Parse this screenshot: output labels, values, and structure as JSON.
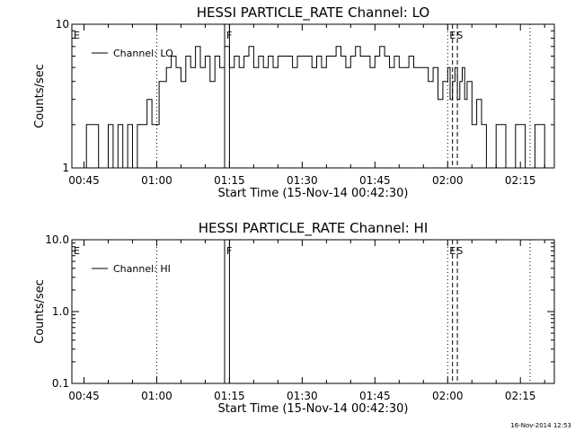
{
  "chart_data": [
    {
      "type": "line",
      "title": "HESSI PARTICLE_RATE Channel: LO",
      "xlabel": "Start Time (15-Nov-14 00:42:30)",
      "ylabel": "Counts/sec",
      "yscale": "log",
      "xlim": [
        "00:42:30",
        "02:22:00"
      ],
      "ylim": [
        1,
        10
      ],
      "x_ticks": [
        "00:45",
        "01:00",
        "01:15",
        "01:30",
        "01:45",
        "02:00",
        "02:15"
      ],
      "y_ticks": [
        "1",
        "10"
      ],
      "grid": false,
      "legend": {
        "placement": "top-left",
        "entries": [
          "Channel: LO"
        ]
      },
      "series": [
        {
          "name": "Channel: LO",
          "x": [
            "00:42:30",
            "00:45:30",
            "00:48:00",
            "00:50:00",
            "00:51:00",
            "00:52:00",
            "00:53:00",
            "00:54:00",
            "00:55:00",
            "00:56:00",
            "00:57:00",
            "00:58:00",
            "00:59:00",
            "01:00:30",
            "01:02:00",
            "01:03:00",
            "01:04:00",
            "01:05:00",
            "01:06:00",
            "01:07:00",
            "01:08:00",
            "01:09:00",
            "01:10:00",
            "01:11:00",
            "01:12:00",
            "01:13:00",
            "01:14:00",
            "01:15:00",
            "01:16:00",
            "01:17:00",
            "01:18:00",
            "01:19:00",
            "01:20:00",
            "01:21:00",
            "01:22:00",
            "01:23:00",
            "01:24:00",
            "01:25:00",
            "01:26:00",
            "01:27:00",
            "01:28:00",
            "01:29:00",
            "01:30:00",
            "01:31:00",
            "01:32:00",
            "01:33:00",
            "01:34:00",
            "01:35:00",
            "01:36:00",
            "01:37:00",
            "01:38:00",
            "01:39:00",
            "01:40:00",
            "01:41:00",
            "01:42:00",
            "01:43:00",
            "01:44:00",
            "01:45:00",
            "01:46:00",
            "01:47:00",
            "01:48:00",
            "01:49:00",
            "01:50:00",
            "01:51:00",
            "01:52:00",
            "01:53:00",
            "01:54:00",
            "01:55:00",
            "01:56:00",
            "01:57:00",
            "01:58:00",
            "01:59:00",
            "02:00:00",
            "02:00:30",
            "02:01:00",
            "02:01:30",
            "02:02:00",
            "02:02:30",
            "02:03:00",
            "02:03:30",
            "02:04:00",
            "02:05:00",
            "02:06:00",
            "02:07:00",
            "02:08:00",
            "02:10:00",
            "02:12:00",
            "02:14:00",
            "02:16:00",
            "02:18:00",
            "02:20:00",
            "02:22:00"
          ],
          "y": [
            1,
            2,
            1,
            2,
            1,
            2,
            1,
            2,
            1,
            2,
            2,
            3,
            2,
            4,
            5,
            6,
            5,
            4,
            6,
            5,
            7,
            5,
            6,
            4,
            6,
            5,
            7,
            5,
            6,
            5,
            6,
            7,
            5,
            6,
            5,
            6,
            5,
            6,
            6,
            6,
            5,
            6,
            6,
            6,
            5,
            6,
            5,
            6,
            6,
            7,
            6,
            5,
            6,
            7,
            6,
            6,
            5,
            6,
            7,
            6,
            5,
            6,
            5,
            5,
            6,
            5,
            5,
            5,
            4,
            5,
            3,
            4,
            5,
            3,
            4,
            5,
            3,
            4,
            5,
            3,
            4,
            2,
            3,
            2,
            1,
            2,
            1,
            2,
            1,
            2,
            1,
            1
          ]
        }
      ],
      "annotations": {
        "E": "E",
        "F": "F",
        "S": "S"
      }
    },
    {
      "type": "line",
      "title": "HESSI PARTICLE_RATE Channel: HI",
      "xlabel": "Start Time (15-Nov-14 00:42:30)",
      "ylabel": "Counts/sec",
      "yscale": "log",
      "xlim": [
        "00:42:30",
        "02:22:00"
      ],
      "ylim": [
        0.1,
        10
      ],
      "x_ticks": [
        "00:45",
        "01:00",
        "01:15",
        "01:30",
        "01:45",
        "02:00",
        "02:15"
      ],
      "y_ticks": [
        "0.1",
        "1.0",
        "10.0"
      ],
      "grid": false,
      "legend": {
        "placement": "top-left",
        "entries": [
          "Channel: HI"
        ]
      },
      "series": [
        {
          "name": "Channel: HI",
          "x": [],
          "y": []
        }
      ],
      "annotations": {
        "E": "E",
        "F": "F",
        "S": "S"
      }
    }
  ],
  "event_lines": [
    {
      "time": "01:00:00",
      "style": "dotted"
    },
    {
      "time": "01:14:00",
      "style": "solid"
    },
    {
      "time": "01:15:00",
      "style": "solid"
    },
    {
      "time": "02:00:00",
      "style": "dotted"
    },
    {
      "time": "02:01:00",
      "style": "dashed"
    },
    {
      "time": "02:02:00",
      "style": "dashed"
    },
    {
      "time": "02:17:00",
      "style": "dotted"
    }
  ],
  "footer": {
    "timestamp": "16-Nov-2014 12:53"
  }
}
